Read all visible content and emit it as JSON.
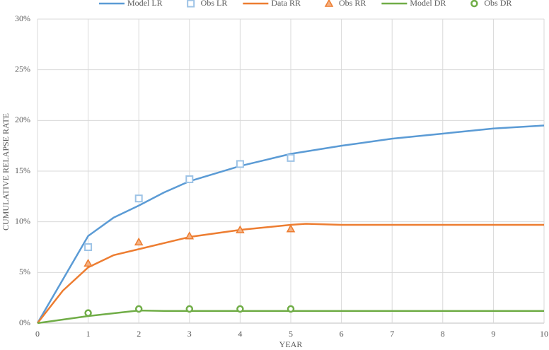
{
  "chart_data": {
    "type": "line",
    "ylabel": "CUMULATIVE RELAPSE RATE",
    "xlabel": "YEAR",
    "xlim": [
      0,
      10
    ],
    "xticks": [
      0,
      1,
      2,
      3,
      4,
      5,
      6,
      7,
      8,
      9,
      10
    ],
    "ylim": [
      0,
      30
    ],
    "yticks": [
      {
        "value": 0,
        "label": "0%"
      },
      {
        "value": 5,
        "label": "5%"
      },
      {
        "value": 10,
        "label": "10%"
      },
      {
        "value": 15,
        "label": "15%"
      },
      {
        "value": 20,
        "label": "20%"
      },
      {
        "value": 25,
        "label": "25%"
      },
      {
        "value": 30,
        "label": "30%"
      }
    ],
    "grid": true,
    "legend": "top",
    "series": [
      {
        "name": "Model LR",
        "kind": "line",
        "color": "#5b9bd5",
        "x": [
          0,
          0.5,
          1,
          1.5,
          2,
          2.5,
          3,
          4,
          5,
          6,
          7,
          8,
          9,
          10
        ],
        "values": [
          0,
          4.3,
          8.6,
          10.4,
          11.6,
          12.9,
          14.0,
          15.5,
          16.7,
          17.5,
          18.2,
          18.7,
          19.2,
          19.5
        ]
      },
      {
        "name": "Obs LR",
        "kind": "scatter",
        "marker": "square",
        "color": "#9dc3e6",
        "x": [
          1,
          2,
          3,
          4,
          5
        ],
        "values": [
          7.5,
          12.3,
          14.2,
          15.7,
          16.3
        ]
      },
      {
        "name": "Data RR",
        "kind": "line",
        "color": "#ed7d31",
        "x": [
          0,
          0.5,
          1,
          1.5,
          2,
          3,
          4,
          5,
          5.3,
          6,
          10
        ],
        "values": [
          0,
          3.2,
          5.5,
          6.7,
          7.3,
          8.5,
          9.2,
          9.7,
          9.8,
          9.7,
          9.7
        ]
      },
      {
        "name": "Obs RR",
        "kind": "scatter",
        "marker": "triangle",
        "color": "#ed7d31",
        "x": [
          1,
          2,
          3,
          4,
          5
        ],
        "values": [
          5.9,
          8.0,
          8.6,
          9.2,
          9.3
        ]
      },
      {
        "name": "Model DR",
        "kind": "line",
        "color": "#70ad47",
        "x": [
          0,
          1,
          2,
          2.5,
          3,
          10
        ],
        "values": [
          0,
          0.7,
          1.25,
          1.2,
          1.2,
          1.2
        ]
      },
      {
        "name": "Obs DR",
        "kind": "scatter",
        "marker": "circle",
        "color": "#70ad47",
        "x": [
          1,
          2,
          3,
          4,
          5
        ],
        "values": [
          1.0,
          1.4,
          1.4,
          1.4,
          1.4
        ]
      }
    ]
  }
}
